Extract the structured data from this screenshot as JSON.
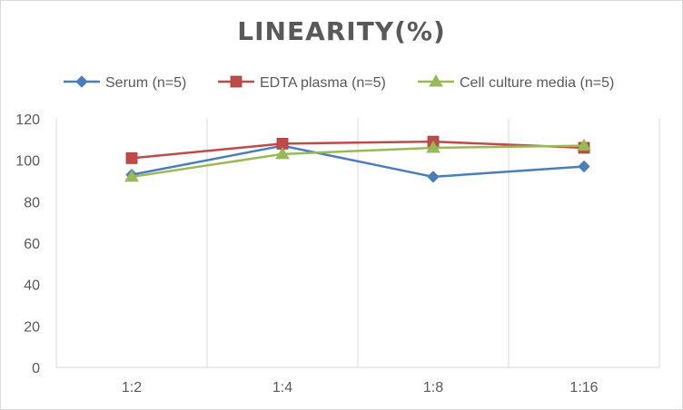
{
  "chart_data": {
    "type": "line",
    "title": "LINEARITY(%)",
    "xlabel": "",
    "ylabel": "",
    "categories": [
      "1:2",
      "1:4",
      "1:8",
      "1:16"
    ],
    "ylim": [
      0,
      120
    ],
    "yticks": [
      0,
      20,
      40,
      60,
      80,
      100,
      120
    ],
    "grid": "vertical",
    "legend": "top",
    "series": [
      {
        "name": "Serum (n=5)",
        "color": "#4a7ebb",
        "marker": "diamond",
        "values": [
          93,
          107,
          92,
          97
        ]
      },
      {
        "name": "EDTA plasma (n=5)",
        "color": "#be4b48",
        "marker": "square",
        "values": [
          101,
          108,
          109,
          106
        ]
      },
      {
        "name": "Cell culture media (n=5)",
        "color": "#98b954",
        "marker": "triangle",
        "values": [
          92,
          103,
          106,
          107
        ]
      }
    ]
  }
}
